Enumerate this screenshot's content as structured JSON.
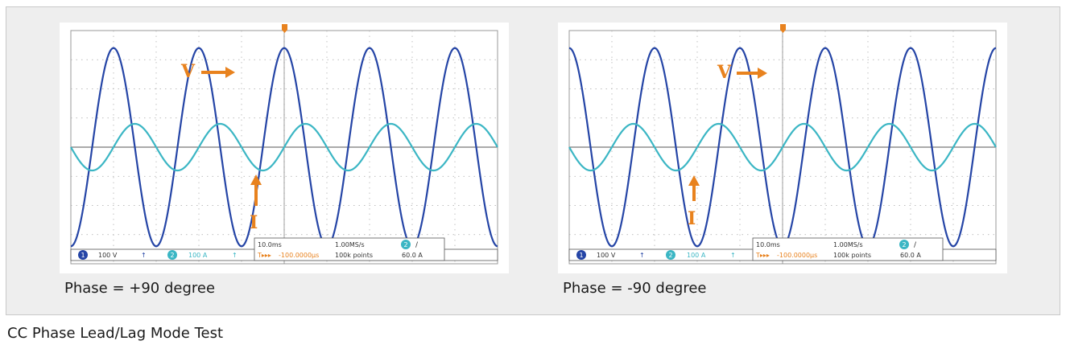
{
  "panels": [
    {
      "caption": "Phase = +90 degree",
      "readout": {
        "ch1": "1",
        "ch1_scale": "100 V",
        "ch1_icon": "↑",
        "ch2": "2",
        "ch2_scale": "100 A",
        "ch2_icon": "↑",
        "timebase": "10.0ms",
        "sample_rate": "1.00MS/s",
        "record": "100k points",
        "trigger_marker": "T▸▸▸",
        "trigger_offset": "-100.0000μs",
        "trig_ch": "2",
        "trig_slope": "/",
        "trig_level": "60.0 A"
      },
      "labels": {
        "voltage": "V",
        "current": "I"
      }
    },
    {
      "caption": "Phase = -90 degree",
      "readout": {
        "ch1": "1",
        "ch1_scale": "100 V",
        "ch1_icon": "↑",
        "ch2": "2",
        "ch2_scale": "100 A",
        "ch2_icon": "↑",
        "timebase": "10.0ms",
        "sample_rate": "1.00MS/s",
        "record": "100k points",
        "trigger_marker": "T▸▸▸",
        "trigger_offset": "-100.0000μs",
        "trig_ch": "2",
        "trig_slope": "/",
        "trig_level": "60.0 A"
      },
      "labels": {
        "voltage": "V",
        "current": "I"
      }
    }
  ],
  "footer": "CC Phase Lead/Lag Mode Test",
  "colors": {
    "voltage": "#2545a6",
    "current": "#3bb6c4",
    "annotation": "#e8821e",
    "grid": "#a8a8a8"
  },
  "chart_data": [
    {
      "type": "line",
      "title": "",
      "x_unit": "ms",
      "x_range": [
        -50,
        50
      ],
      "series": [
        {
          "name": "",
          "amplitude_div": 3.4,
          "period_ms": 20,
          "phase_deg": 90
        },
        {
          "name": "",
          "amplitude_div": 0.8,
          "period_ms": 20,
          "phase_deg": 0
        }
      ],
      "phase_relation": "+90"
    },
    {
      "type": "line",
      "title": "",
      "x_unit": "ms",
      "x_range": [
        -50,
        50
      ],
      "series": [
        {
          "name": "",
          "amplitude_div": 3.4,
          "period_ms": 20,
          "phase_deg": -90
        },
        {
          "name": "",
          "amplitude_div": 0.8,
          "period_ms": 20,
          "phase_deg": 0
        }
      ],
      "phase_relation": "-90"
    }
  ]
}
